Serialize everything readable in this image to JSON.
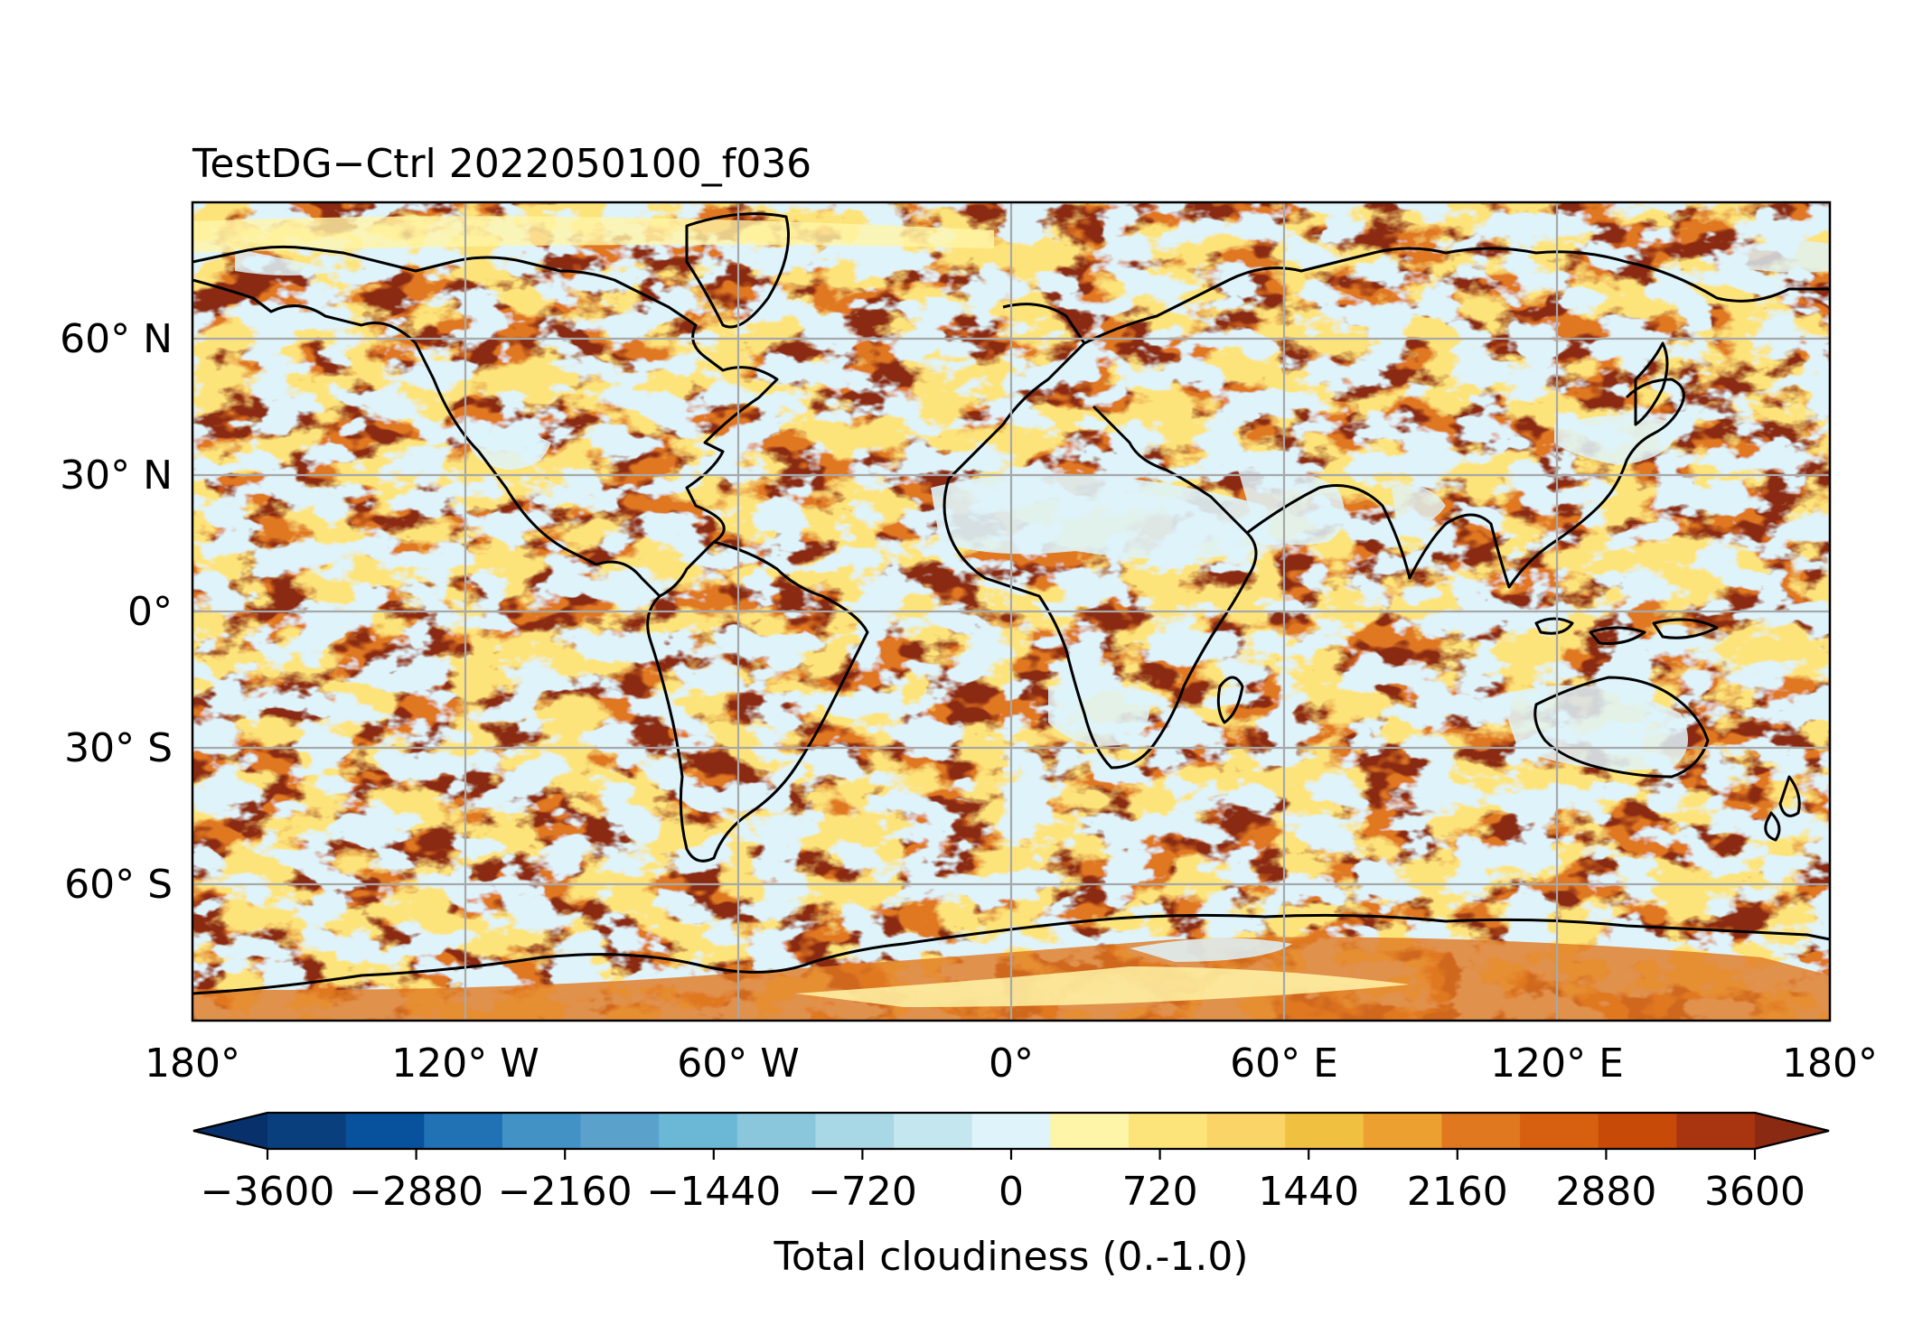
{
  "title": "TestDG−Ctrl 2022050100_f036",
  "map": {
    "projection": "PlateCarree",
    "lon_range": [
      -180,
      180
    ],
    "lat_range": [
      -90,
      90
    ],
    "ocean_fill": "#8a2a12",
    "coastline_color": "#000000",
    "gridline_color": "#a8a8a8",
    "lon_ticks": [
      {
        "lon": -180,
        "label": "180°"
      },
      {
        "lon": -120,
        "label": "120° W"
      },
      {
        "lon": -60,
        "label": "60° W"
      },
      {
        "lon": 0,
        "label": "0°"
      },
      {
        "lon": 60,
        "label": "60° E"
      },
      {
        "lon": 120,
        "label": "120° E"
      },
      {
        "lon": 180,
        "label": "180°"
      }
    ],
    "lat_ticks": [
      {
        "lat": 60,
        "label": "60° N"
      },
      {
        "lat": 30,
        "label": "30° N"
      },
      {
        "lat": 0,
        "label": "0°"
      },
      {
        "lat": -30,
        "label": "30° S"
      },
      {
        "lat": -60,
        "label": "60° S"
      }
    ]
  },
  "colorbar": {
    "label": "Total cloudiness (0.-1.0)",
    "vmin": -3600,
    "vmax": 3600,
    "extend": "both",
    "colors": [
      "#08306b",
      "#0a3f7d",
      "#08519c",
      "#2171b5",
      "#4292c6",
      "#5aa1cc",
      "#6bb7d6",
      "#8ac6dc",
      "#a8d8e6",
      "#c4e6ef",
      "#def3fa",
      "#fff5a8",
      "#fde47a",
      "#fad466",
      "#f0c040",
      "#eca030",
      "#e07820",
      "#d66010",
      "#c84a08",
      "#a83510",
      "#8a2a12"
    ],
    "ticks": [
      {
        "value": -3600,
        "label": "−3600"
      },
      {
        "value": -2880,
        "label": "−2880"
      },
      {
        "value": -2160,
        "label": "−2160"
      },
      {
        "value": -1440,
        "label": "−1440"
      },
      {
        "value": -720,
        "label": "−720"
      },
      {
        "value": 0,
        "label": "0"
      },
      {
        "value": 720,
        "label": "720"
      },
      {
        "value": 1440,
        "label": "1440"
      },
      {
        "value": 2160,
        "label": "2160"
      },
      {
        "value": 2880,
        "label": "2880"
      },
      {
        "value": 3600,
        "label": "3600"
      }
    ]
  }
}
